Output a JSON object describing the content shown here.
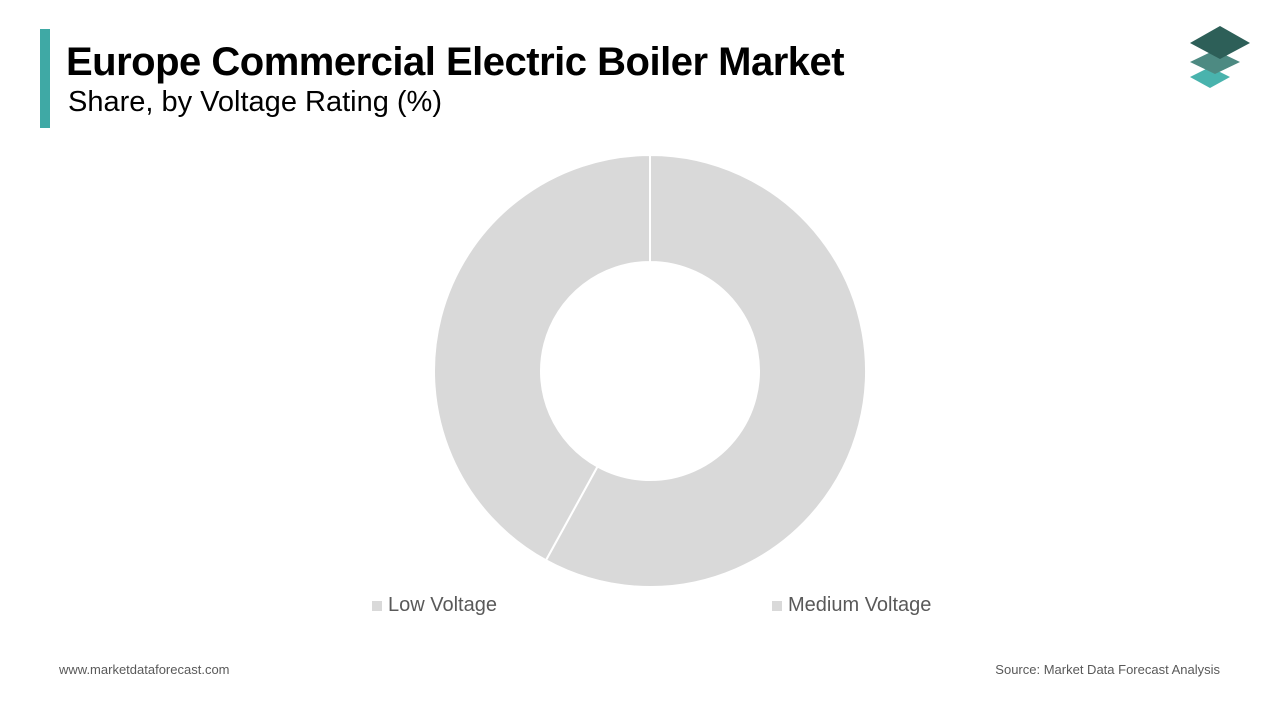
{
  "header": {
    "title": "Europe Commercial Electric Boiler Market",
    "subtitle": "Share, by Voltage Rating (%)",
    "accent_color": "#3fa9a5"
  },
  "logo": {
    "icon": "stacked-layers-logo-icon",
    "colors": [
      "#2d5f58",
      "#4d8a82",
      "#49b3ad"
    ]
  },
  "chart_data": {
    "type": "pie",
    "donut": true,
    "categories": [
      "Low Voltage",
      "Medium Voltage"
    ],
    "values": [
      42,
      58
    ],
    "colors": [
      "#d9d9d9",
      "#d9d9d9"
    ],
    "legend_position": "bottom"
  },
  "footer": {
    "website": "www.marketdataforecast.com",
    "source": "Source: Market Data Forecast Analysis"
  }
}
